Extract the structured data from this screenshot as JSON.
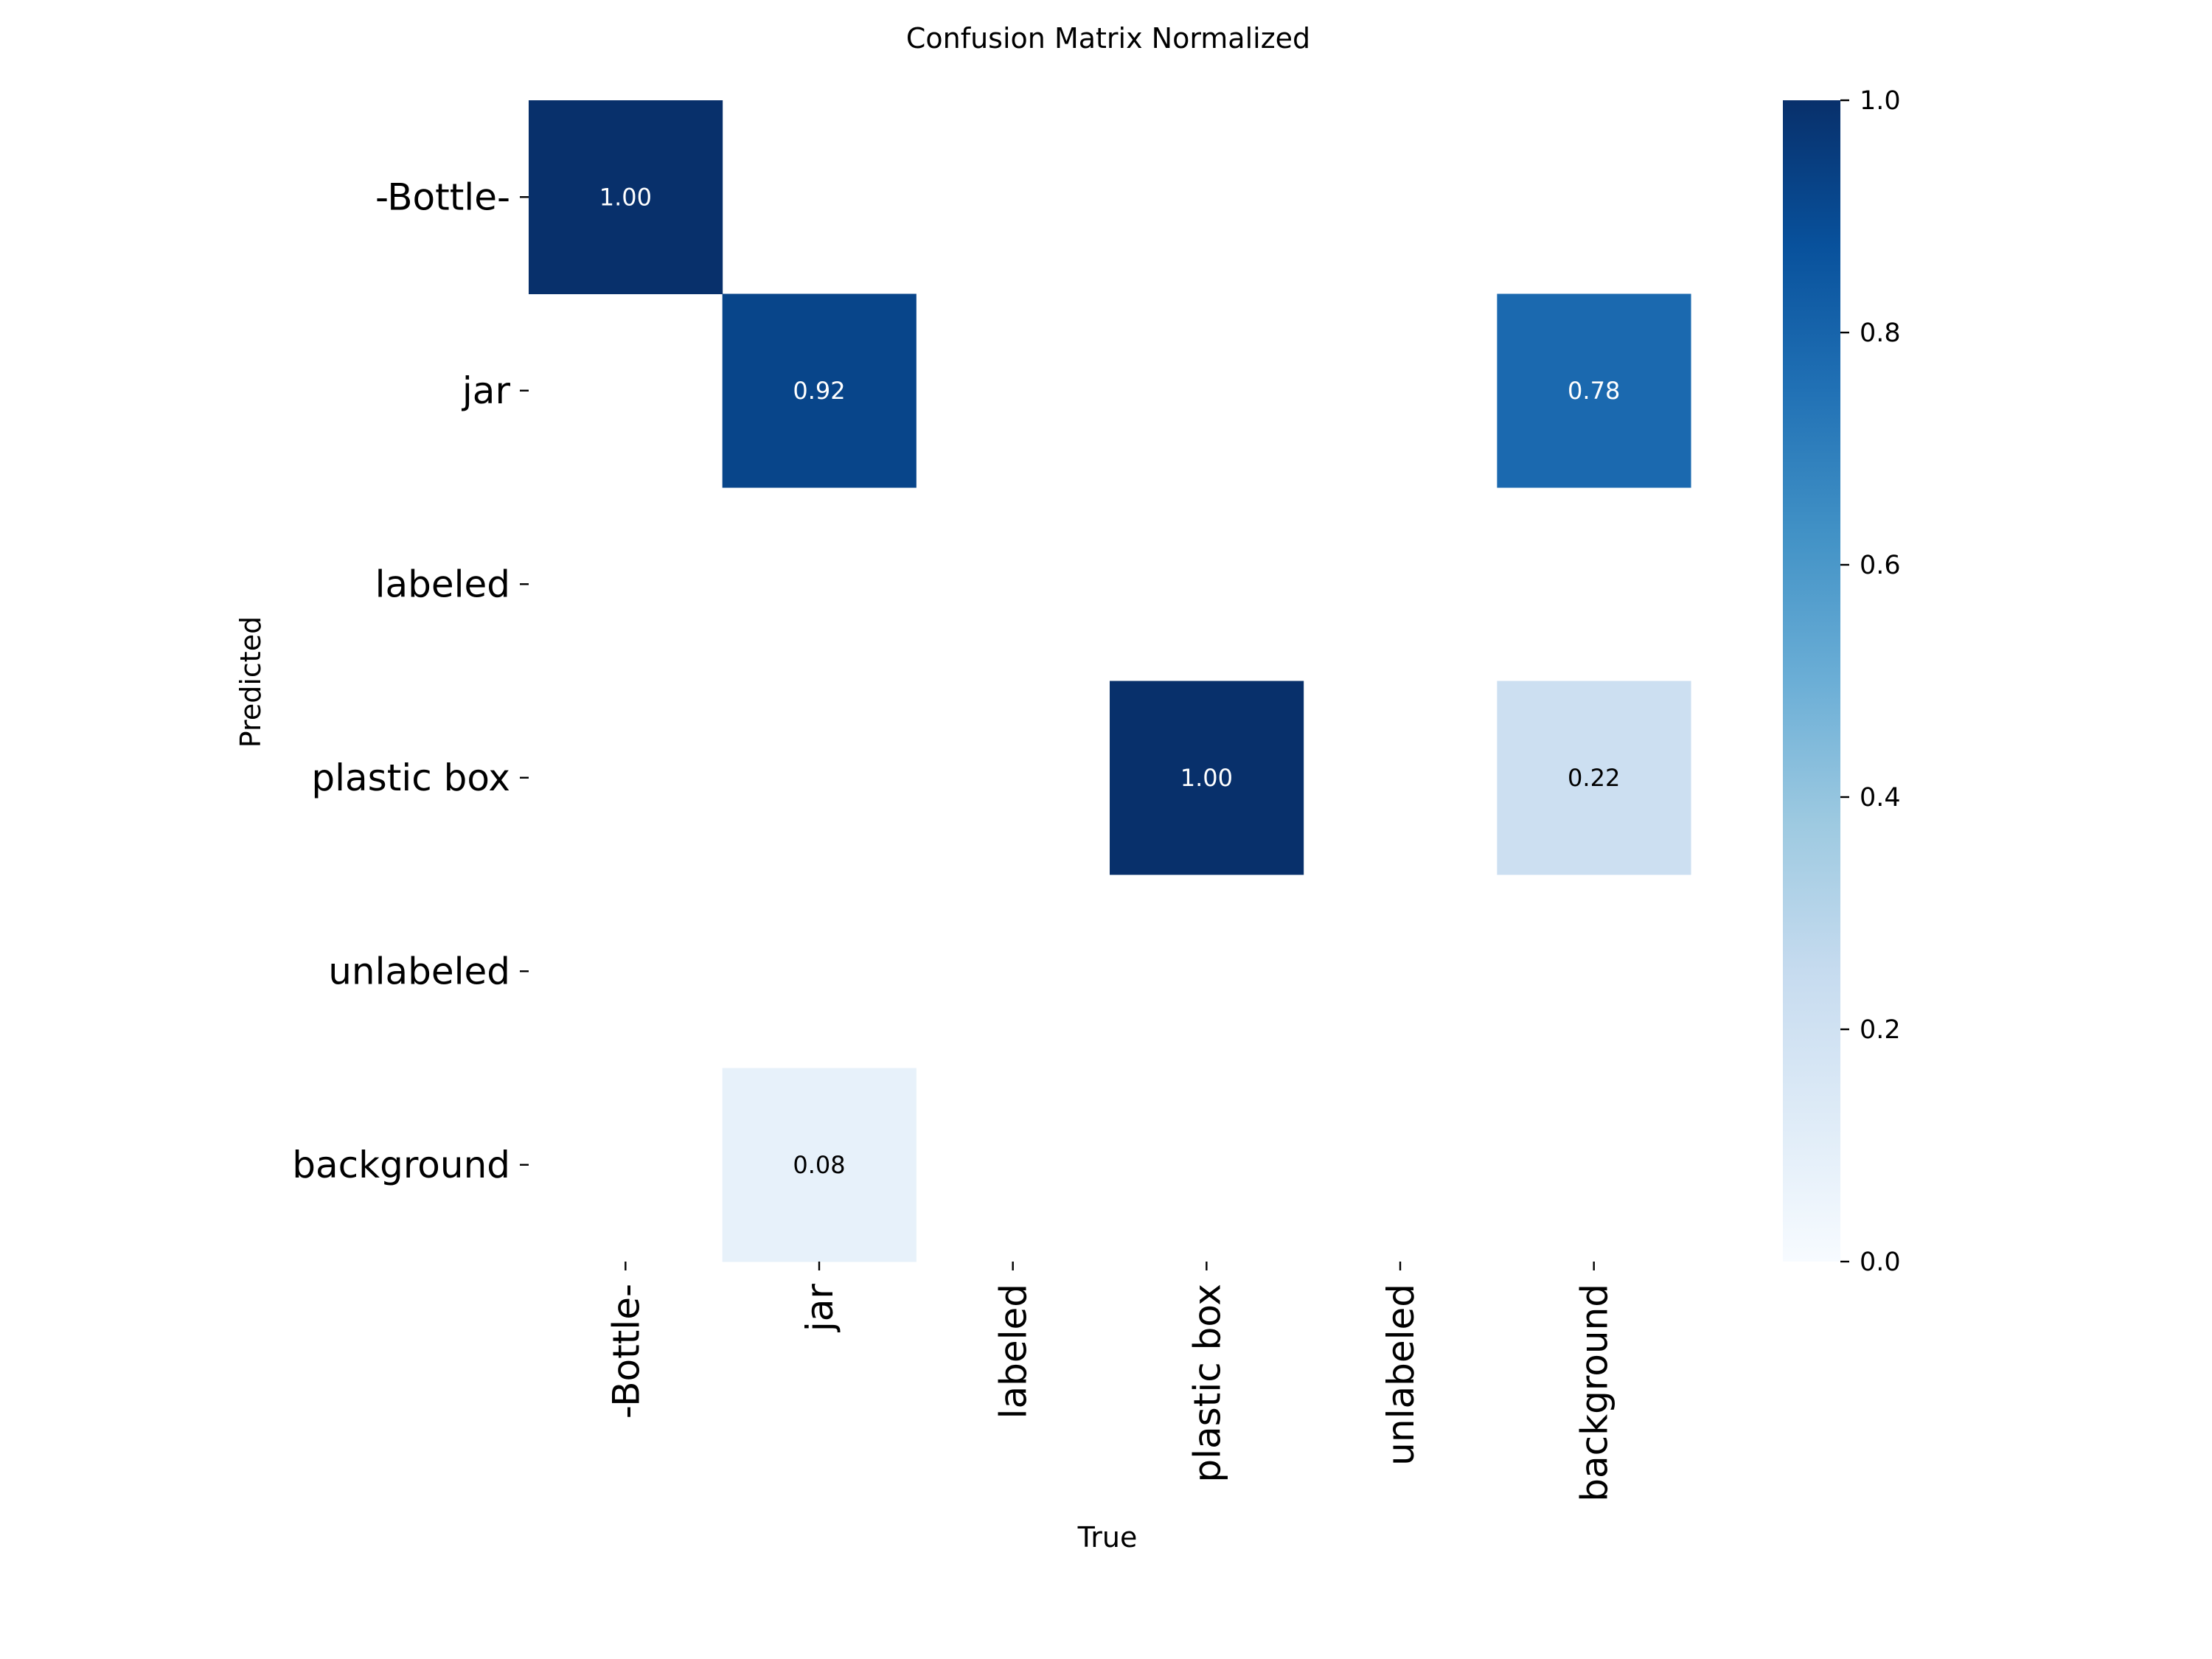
{
  "chart_data": {
    "type": "heatmap",
    "title": "Confusion Matrix Normalized",
    "xlabel": "True",
    "ylabel": "Predicted",
    "x_categories": [
      "-Bottle-",
      "jar",
      "labeled",
      "plastic box",
      "unlabeled",
      "background"
    ],
    "y_categories": [
      "-Bottle-",
      "jar",
      "labeled",
      "plastic box",
      "unlabeled",
      "background"
    ],
    "values": [
      [
        1.0,
        0,
        0,
        0,
        0,
        0
      ],
      [
        0,
        0.92,
        0,
        0,
        0,
        0.78
      ],
      [
        0,
        0,
        0,
        0,
        0,
        0
      ],
      [
        0,
        0,
        0,
        1.0,
        0,
        0.22
      ],
      [
        0,
        0,
        0,
        0,
        0,
        0
      ],
      [
        0,
        0.08,
        0,
        0,
        0,
        0
      ]
    ],
    "annotations": [
      {
        "row": 0,
        "col": 0,
        "text": "1.00"
      },
      {
        "row": 1,
        "col": 1,
        "text": "0.92"
      },
      {
        "row": 1,
        "col": 5,
        "text": "0.78"
      },
      {
        "row": 3,
        "col": 3,
        "text": "1.00"
      },
      {
        "row": 3,
        "col": 5,
        "text": "0.22"
      },
      {
        "row": 5,
        "col": 1,
        "text": "0.08"
      }
    ],
    "colormap": "Blues",
    "colorbar": {
      "range": [
        0.0,
        1.0
      ],
      "ticks": [
        "0.0",
        "0.2",
        "0.4",
        "0.6",
        "0.8",
        "1.0"
      ]
    }
  },
  "colors": {
    "cmap_stops": [
      "#f7fbff",
      "#deebf7",
      "#c6dbef",
      "#9ecae1",
      "#6baed6",
      "#4292c6",
      "#2171b5",
      "#08519c",
      "#08306b"
    ]
  }
}
